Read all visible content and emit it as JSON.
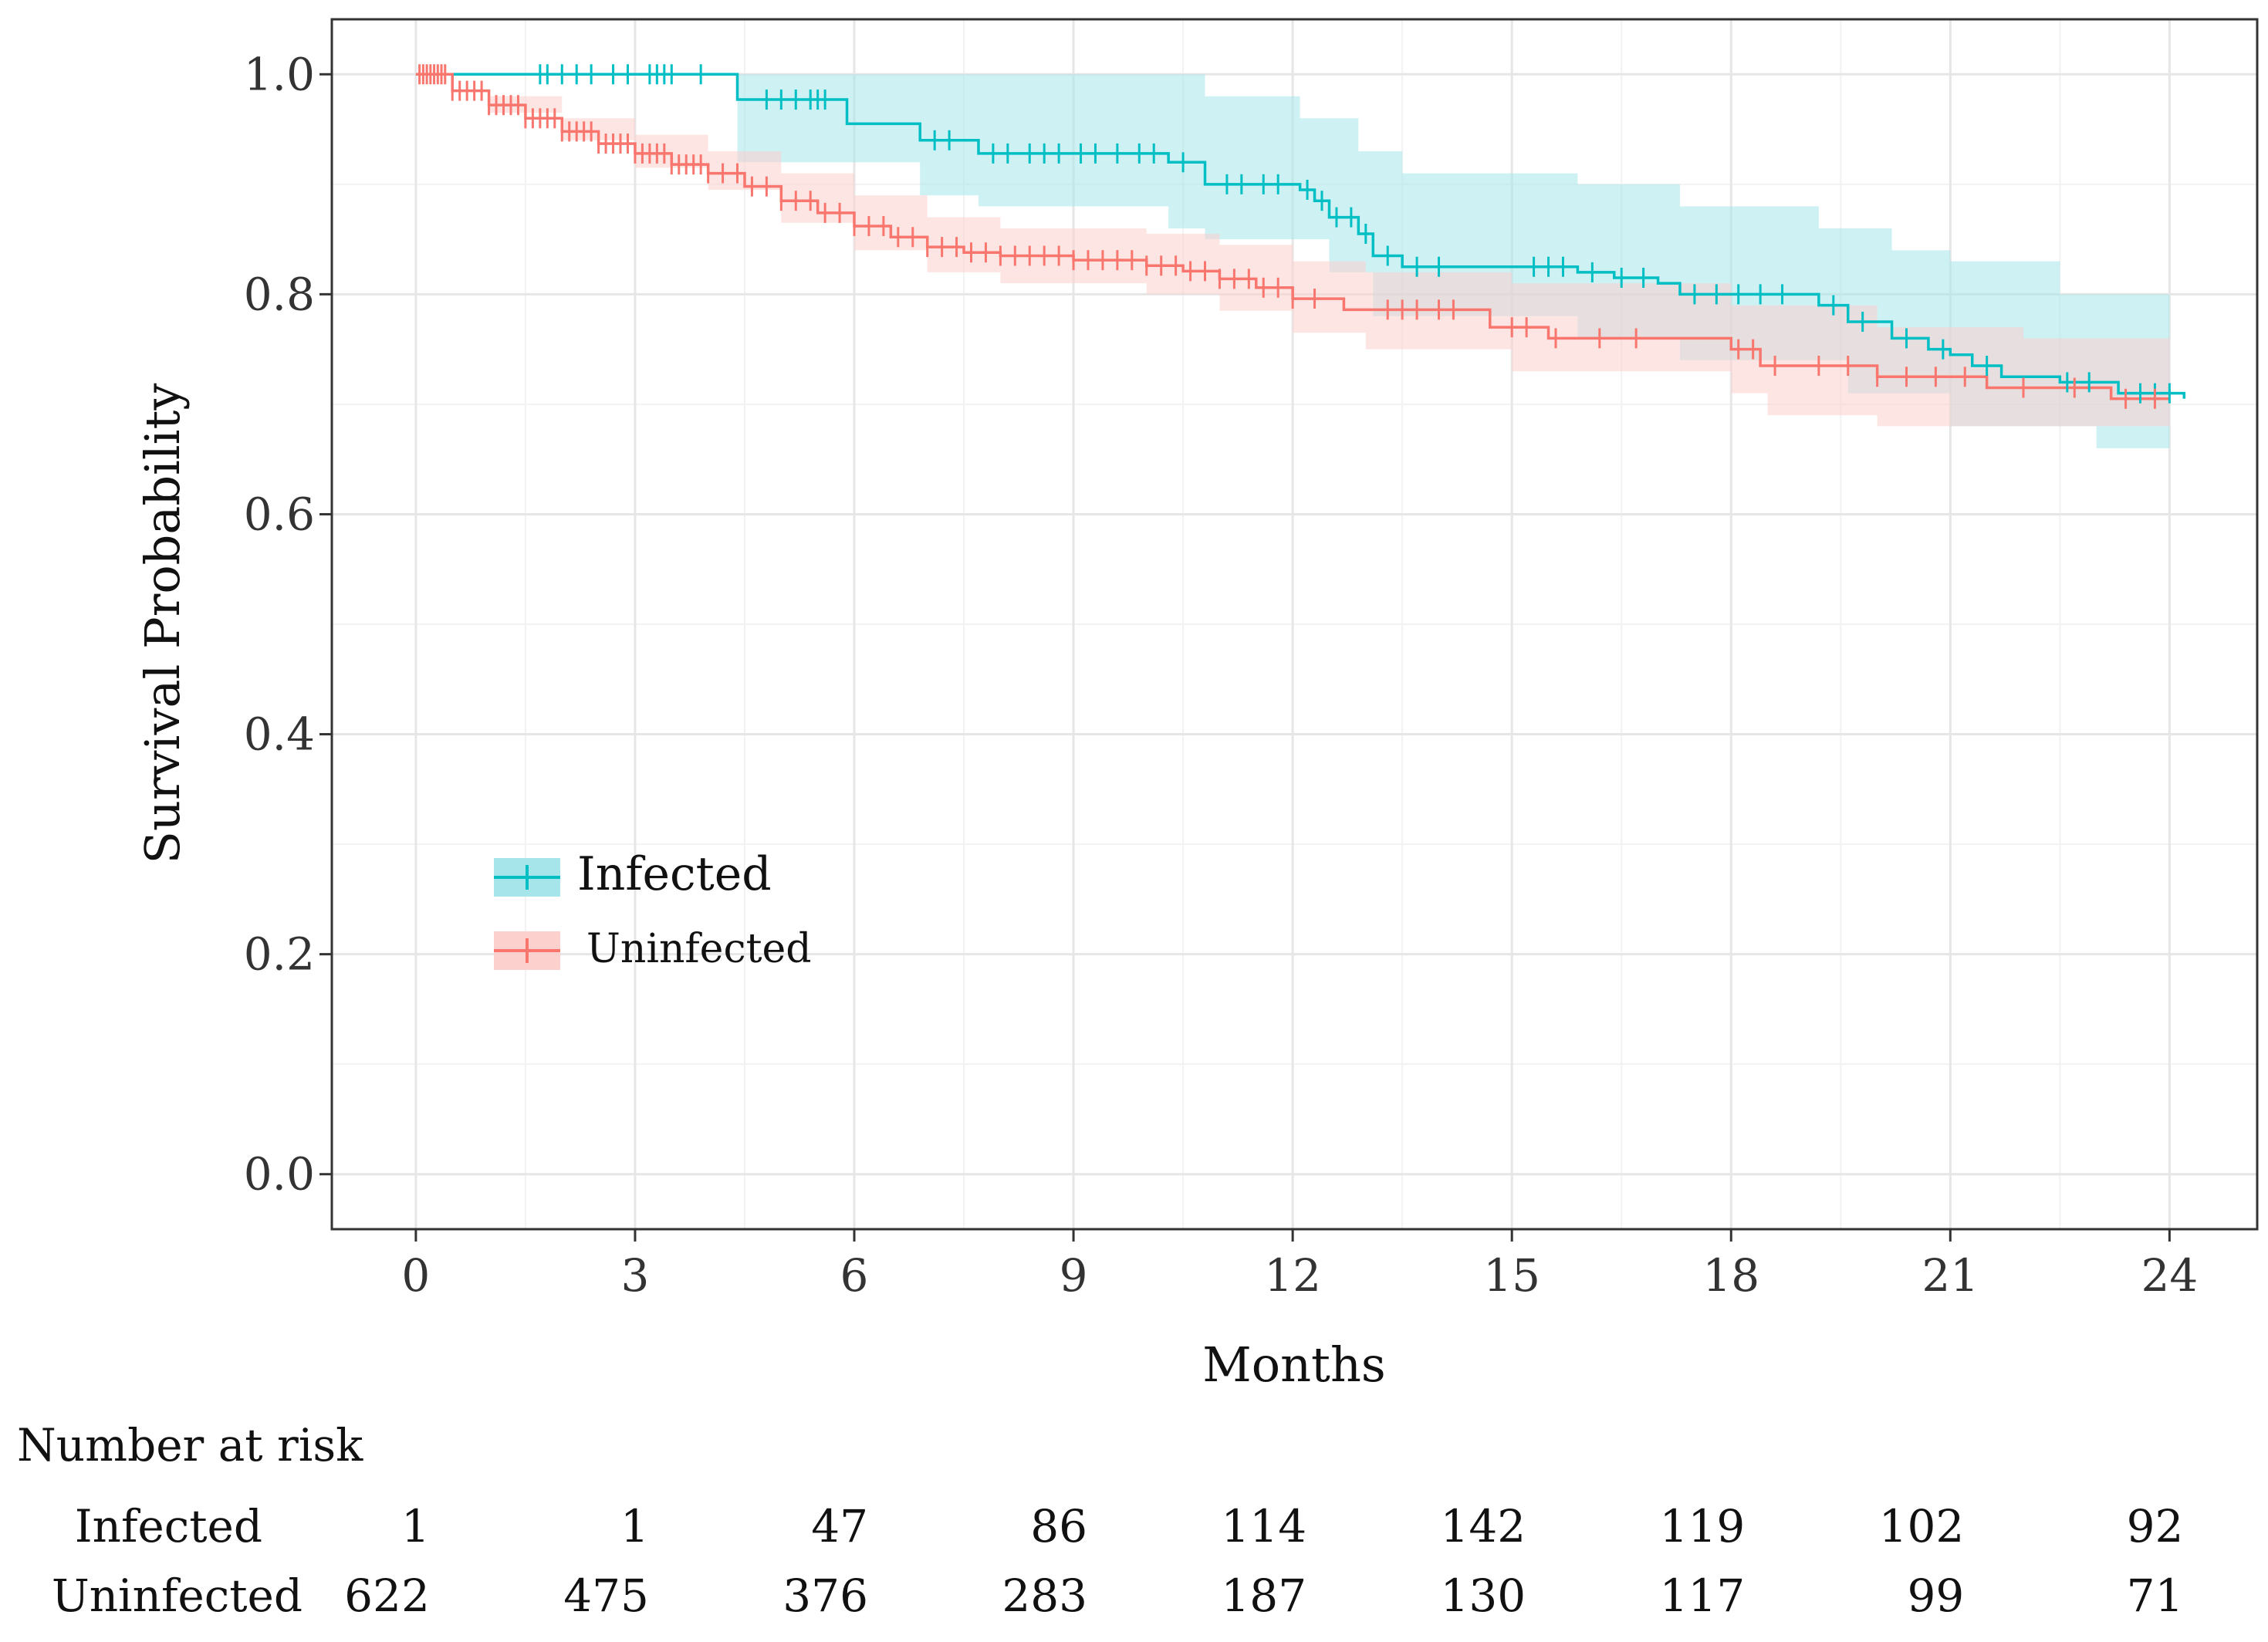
{
  "chart_data": {
    "type": "line",
    "subtype": "kaplan-meier",
    "title": "",
    "xlabel": "Months",
    "ylabel": "Survival Probability",
    "xlim": [
      -1.15,
      25.2
    ],
    "ylim": [
      -0.05,
      1.05
    ],
    "xticks": [
      "0",
      "3",
      "6",
      "9",
      "12",
      "15",
      "18",
      "21",
      "24"
    ],
    "yticks": [
      "0.0",
      "0.2",
      "0.4",
      "0.6",
      "0.8",
      "1.0"
    ],
    "grid": true,
    "legend": {
      "position": "center-left",
      "entries": [
        "Infected",
        "Uninfected"
      ]
    },
    "colors": {
      "Infected": "#00BFC4",
      "Uninfected": "#F8766D",
      "Infected_band": "#A6E6EA",
      "Uninfected_band": "#FBD0CD"
    },
    "series": [
      {
        "name": "Infected",
        "steps": [
          [
            0,
            1.0
          ],
          [
            4.4,
            0.977
          ],
          [
            5.9,
            0.955
          ],
          [
            6.9,
            0.94
          ],
          [
            7.7,
            0.928
          ],
          [
            10.3,
            0.92
          ],
          [
            10.8,
            0.9
          ],
          [
            12.1,
            0.895
          ],
          [
            12.3,
            0.885
          ],
          [
            12.5,
            0.87
          ],
          [
            12.9,
            0.855
          ],
          [
            13.1,
            0.835
          ],
          [
            13.5,
            0.825
          ],
          [
            15.9,
            0.82
          ],
          [
            16.4,
            0.815
          ],
          [
            17.0,
            0.81
          ],
          [
            17.3,
            0.8
          ],
          [
            19.2,
            0.79
          ],
          [
            19.6,
            0.775
          ],
          [
            20.2,
            0.76
          ],
          [
            20.7,
            0.75
          ],
          [
            21.0,
            0.745
          ],
          [
            21.3,
            0.735
          ],
          [
            21.7,
            0.725
          ],
          [
            22.5,
            0.72
          ],
          [
            23.3,
            0.71
          ],
          [
            24.2,
            0.705
          ]
        ],
        "ci_lower": [
          [
            0,
            1.0
          ],
          [
            4.4,
            0.92
          ],
          [
            5.9,
            0.92
          ],
          [
            6.9,
            0.89
          ],
          [
            7.7,
            0.88
          ],
          [
            10.3,
            0.86
          ],
          [
            10.8,
            0.85
          ],
          [
            12.5,
            0.82
          ],
          [
            13.1,
            0.78
          ],
          [
            15.9,
            0.76
          ],
          [
            17.3,
            0.74
          ],
          [
            19.6,
            0.71
          ],
          [
            21.0,
            0.68
          ],
          [
            23.0,
            0.66
          ],
          [
            24.0,
            0.66
          ]
        ],
        "ci_upper": [
          [
            0,
            1.0
          ],
          [
            4.4,
            1.0
          ],
          [
            10.8,
            0.98
          ],
          [
            12.1,
            0.96
          ],
          [
            12.9,
            0.93
          ],
          [
            13.5,
            0.91
          ],
          [
            15.9,
            0.9
          ],
          [
            17.3,
            0.88
          ],
          [
            19.2,
            0.86
          ],
          [
            20.2,
            0.84
          ],
          [
            21.0,
            0.83
          ],
          [
            22.5,
            0.8
          ],
          [
            24.0,
            0.8
          ]
        ],
        "censor_times": [
          1.7,
          1.8,
          2.0,
          2.2,
          2.4,
          2.7,
          2.9,
          3.2,
          3.3,
          3.4,
          3.5,
          3.9,
          4.8,
          5.0,
          5.2,
          5.4,
          5.5,
          5.6,
          7.1,
          7.3,
          7.9,
          8.1,
          8.4,
          8.6,
          8.8,
          9.1,
          9.3,
          9.6,
          9.9,
          10.1,
          10.5,
          11.1,
          11.3,
          11.6,
          11.8,
          12.2,
          12.4,
          12.6,
          12.8,
          13.0,
          13.3,
          13.7,
          14.0,
          15.3,
          15.5,
          15.7,
          16.1,
          16.5,
          16.8,
          17.5,
          17.8,
          18.1,
          18.4,
          18.7,
          19.4,
          19.8,
          20.4,
          20.9,
          21.5,
          22.6,
          22.9,
          23.6,
          23.8,
          24.0
        ]
      },
      {
        "name": "Uninfected",
        "steps": [
          [
            0,
            1.0
          ],
          [
            0.5,
            0.985
          ],
          [
            1.0,
            0.972
          ],
          [
            1.5,
            0.96
          ],
          [
            2.0,
            0.948
          ],
          [
            2.5,
            0.937
          ],
          [
            3.0,
            0.928
          ],
          [
            3.5,
            0.918
          ],
          [
            4.0,
            0.91
          ],
          [
            4.5,
            0.898
          ],
          [
            5.0,
            0.885
          ],
          [
            5.5,
            0.874
          ],
          [
            6.0,
            0.862
          ],
          [
            6.5,
            0.852
          ],
          [
            7.0,
            0.843
          ],
          [
            7.5,
            0.838
          ],
          [
            8.0,
            0.835
          ],
          [
            9.0,
            0.831
          ],
          [
            10.0,
            0.826
          ],
          [
            10.5,
            0.821
          ],
          [
            11.0,
            0.814
          ],
          [
            11.5,
            0.806
          ],
          [
            12.0,
            0.796
          ],
          [
            12.7,
            0.786
          ],
          [
            14.7,
            0.77
          ],
          [
            15.5,
            0.76
          ],
          [
            18.0,
            0.75
          ],
          [
            18.4,
            0.735
          ],
          [
            20.0,
            0.725
          ],
          [
            21.5,
            0.715
          ],
          [
            23.2,
            0.705
          ],
          [
            24.0,
            0.705
          ]
        ],
        "ci_lower": [
          [
            0,
            1.0
          ],
          [
            1.0,
            0.965
          ],
          [
            2.0,
            0.94
          ],
          [
            3.0,
            0.915
          ],
          [
            4.0,
            0.895
          ],
          [
            5.0,
            0.865
          ],
          [
            6.0,
            0.84
          ],
          [
            7.0,
            0.82
          ],
          [
            8.0,
            0.81
          ],
          [
            10.0,
            0.8
          ],
          [
            11.0,
            0.785
          ],
          [
            12.0,
            0.765
          ],
          [
            13.0,
            0.75
          ],
          [
            15.0,
            0.73
          ],
          [
            18.0,
            0.71
          ],
          [
            18.5,
            0.69
          ],
          [
            20.0,
            0.68
          ],
          [
            22.0,
            0.68
          ],
          [
            24.0,
            0.66
          ]
        ],
        "ci_upper": [
          [
            0,
            1.0
          ],
          [
            1.0,
            0.98
          ],
          [
            2.0,
            0.96
          ],
          [
            3.0,
            0.945
          ],
          [
            4.0,
            0.93
          ],
          [
            5.0,
            0.91
          ],
          [
            6.0,
            0.89
          ],
          [
            7.0,
            0.87
          ],
          [
            8.0,
            0.86
          ],
          [
            10.0,
            0.855
          ],
          [
            11.0,
            0.845
          ],
          [
            12.0,
            0.83
          ],
          [
            13.0,
            0.82
          ],
          [
            15.0,
            0.81
          ],
          [
            18.0,
            0.79
          ],
          [
            20.0,
            0.77
          ],
          [
            22.0,
            0.76
          ],
          [
            24.0,
            0.76
          ]
        ],
        "censor_times": [
          0.05,
          0.1,
          0.15,
          0.2,
          0.25,
          0.3,
          0.35,
          0.4,
          0.5,
          0.6,
          0.7,
          0.8,
          0.9,
          1.0,
          1.1,
          1.2,
          1.3,
          1.4,
          1.5,
          1.6,
          1.7,
          1.8,
          1.9,
          2.0,
          2.1,
          2.2,
          2.3,
          2.4,
          2.5,
          2.6,
          2.7,
          2.8,
          2.9,
          3.0,
          3.1,
          3.2,
          3.3,
          3.4,
          3.5,
          3.6,
          3.7,
          3.8,
          3.9,
          4.0,
          4.2,
          4.4,
          4.6,
          4.8,
          5.0,
          5.2,
          5.4,
          5.6,
          5.8,
          6.0,
          6.2,
          6.4,
          6.6,
          6.8,
          7.0,
          7.2,
          7.4,
          7.6,
          7.8,
          8.0,
          8.2,
          8.4,
          8.6,
          8.8,
          9.0,
          9.2,
          9.4,
          9.6,
          9.8,
          10.0,
          10.2,
          10.4,
          10.6,
          10.8,
          11.0,
          11.2,
          11.4,
          11.6,
          11.8,
          12.0,
          12.3,
          13.3,
          13.5,
          13.7,
          14.0,
          14.2,
          15.0,
          15.2,
          15.6,
          16.2,
          16.7,
          18.1,
          18.3,
          18.6,
          19.2,
          19.6,
          20.0,
          20.4,
          20.8,
          21.2,
          22.0,
          22.7,
          23.4,
          23.8
        ]
      }
    ]
  },
  "risk_table": {
    "title": "Number at risk",
    "rows": [
      {
        "label": "Infected",
        "values": [
          "1",
          "1",
          "47",
          "86",
          "114",
          "142",
          "119",
          "102",
          "92"
        ]
      },
      {
        "label": "Uninfected",
        "values": [
          "622",
          "475",
          "376",
          "283",
          "187",
          "130",
          "117",
          "99",
          "71"
        ]
      }
    ]
  }
}
